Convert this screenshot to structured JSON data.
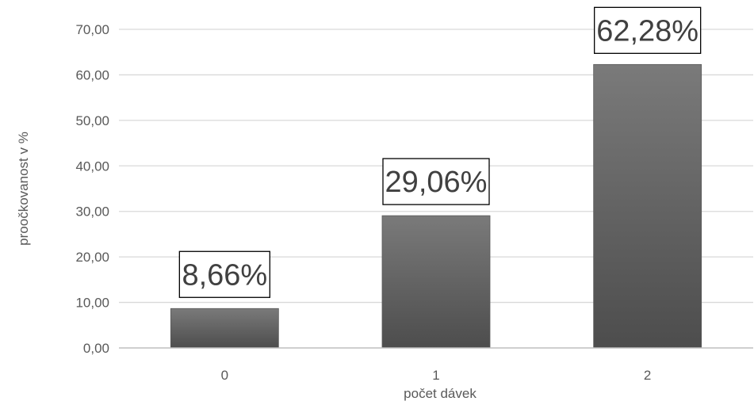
{
  "chart_data": {
    "type": "bar",
    "title": "",
    "xlabel": "počet dávek",
    "ylabel": "proočkovanost v %",
    "categories": [
      "0",
      "1",
      "2"
    ],
    "values": [
      8.66,
      29.06,
      62.28
    ],
    "data_labels": [
      "8,66%",
      "29,06%",
      "62,28%"
    ],
    "ylim": [
      0,
      70
    ],
    "yticks": [
      0,
      10,
      20,
      30,
      40,
      50,
      60,
      70
    ],
    "ytick_labels": [
      "0,00",
      "10,00",
      "20,00",
      "30,00",
      "40,00",
      "50,00",
      "60,00",
      "70,00"
    ],
    "grid": true,
    "legend": "none",
    "colors": {
      "bar_top": "#7a7a7a",
      "bar_bottom": "#4d4d4d",
      "grid": "#d9d9d9",
      "axis": "#bfbfbf",
      "label_box_border": "#000000",
      "text": "#595959"
    }
  }
}
